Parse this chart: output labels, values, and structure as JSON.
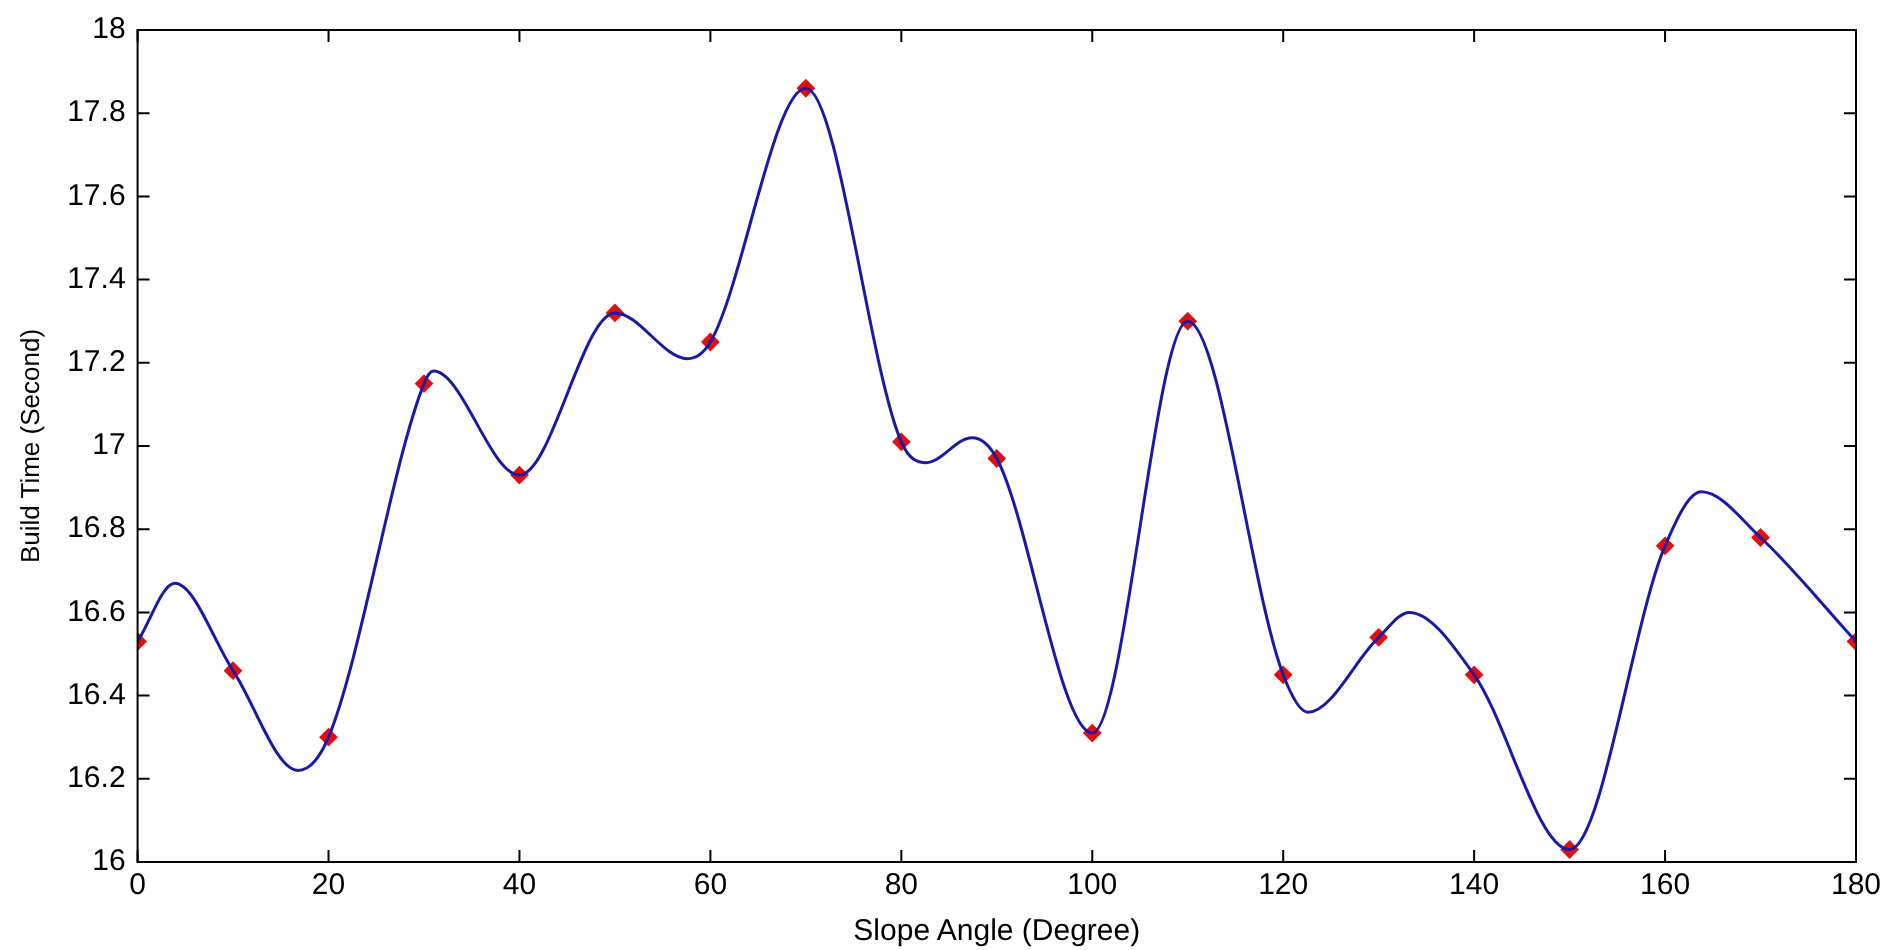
{
  "chart_data": {
    "type": "line",
    "xlabel": "Slope Angle (Degree)",
    "ylabel": "Build Time (Second)",
    "xlim": [
      0,
      180
    ],
    "xticks": [
      0,
      20,
      40,
      60,
      80,
      100,
      120,
      140,
      160,
      180
    ],
    "ylim": [
      16,
      18
    ],
    "yticks": [
      16,
      16.2,
      16.4,
      16.6,
      16.8,
      17,
      17.2,
      17.4,
      17.6,
      17.8,
      18
    ],
    "grid": false,
    "legend": false,
    "series": [
      {
        "type": "line",
        "color": "#1a1aa6",
        "marker": "none",
        "line_style": "solid",
        "x": [
          0,
          3.9,
          10,
          16.8,
          20,
          30,
          31,
          40,
          50,
          57.6,
          60,
          70,
          80,
          82.6,
          87.4,
          90,
          100,
          110,
          120,
          122.6,
          130,
          133.2,
          140,
          150,
          160,
          163.8,
          170,
          180
        ],
        "values": [
          16.53,
          16.67,
          16.46,
          16.22,
          16.3,
          17.15,
          17.18,
          16.93,
          17.32,
          17.21,
          17.25,
          17.86,
          17.01,
          16.96,
          17.02,
          16.97,
          16.31,
          17.3,
          16.45,
          16.36,
          16.54,
          16.6,
          16.45,
          16.03,
          16.76,
          16.89,
          16.78,
          16.53
        ]
      },
      {
        "type": "scatter",
        "color": "#e01010",
        "marker": "diamond",
        "x": [
          0,
          10,
          20,
          30,
          40,
          50,
          60,
          70,
          80,
          90,
          100,
          110,
          120,
          130,
          140,
          150,
          160,
          170,
          180
        ],
        "values": [
          16.53,
          16.46,
          16.3,
          17.15,
          16.93,
          17.32,
          17.25,
          17.86,
          17.01,
          16.97,
          16.31,
          17.3,
          16.45,
          16.54,
          16.45,
          16.03,
          16.76,
          16.78,
          16.53
        ]
      }
    ]
  }
}
